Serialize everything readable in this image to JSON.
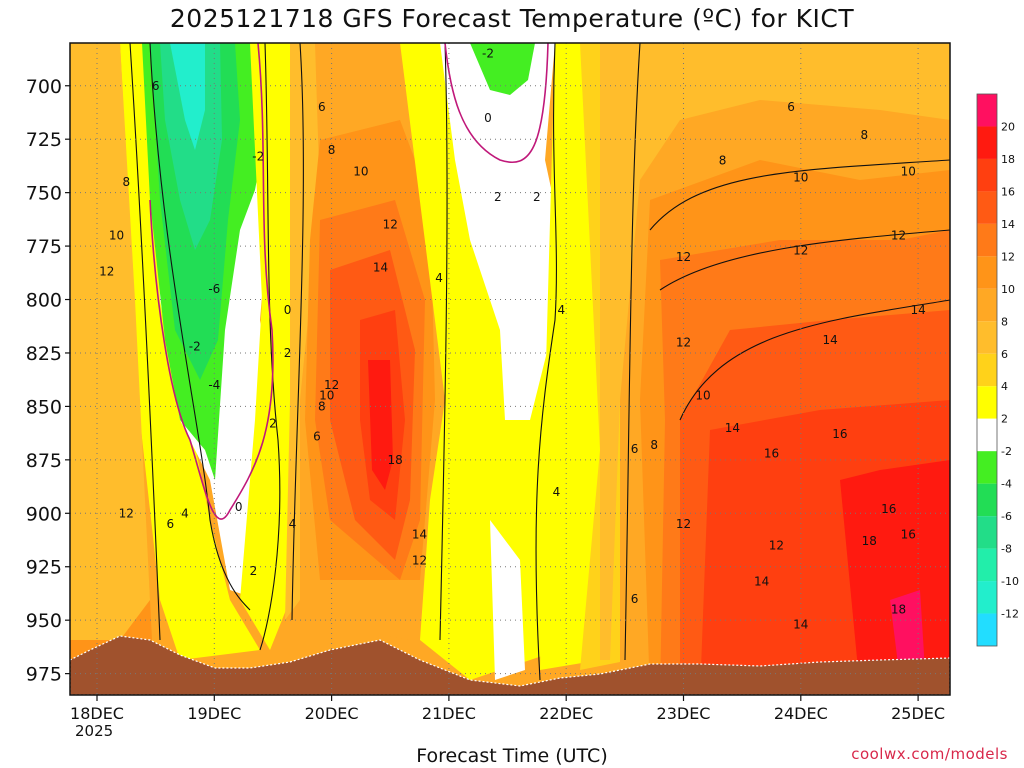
{
  "title": "2025121718 GFS Forecast Temperature (ºC) for KICT",
  "xlabel": "Forecast Time (UTC)",
  "credit": "coolwx.com/models",
  "year_label": "2025",
  "chart_data": {
    "type": "heatmap",
    "title": "2025121718 GFS Forecast Temperature (ºC) for KICT",
    "xlabel": "Forecast Time (UTC)",
    "ylabel": "",
    "x_ticks": [
      "18DEC",
      "19DEC",
      "20DEC",
      "21DEC",
      "22DEC",
      "23DEC",
      "24DEC",
      "25DEC"
    ],
    "y_ticks": [
      700,
      725,
      750,
      775,
      800,
      825,
      850,
      875,
      900,
      925,
      950,
      975
    ],
    "ylim": [
      680,
      985
    ],
    "y_inverted": true,
    "grid": true,
    "colorbar": {
      "levels": [
        20,
        18,
        16,
        14,
        12,
        10,
        8,
        6,
        4,
        2,
        -2,
        -4,
        -6,
        -8,
        -10,
        -12
      ],
      "colors": {
        "gt20": "#ff1060",
        "18_20": "#ff1a10",
        "16_18": "#ff3f10",
        "14_16": "#ff5a14",
        "12_14": "#ff7a18",
        "10_12": "#ff9418",
        "8_10": "#ffa824",
        "6_8": "#ffbd2c",
        "4_6": "#ffd21a",
        "2_4": "#ffff00",
        "m2_2": "#ffffff",
        "m4_m2": "#44ee22",
        "m6_m4": "#22dd55",
        "m8_m6": "#22dd88",
        "m10_m8": "#22eeaa",
        "m12_m10": "#22eecc",
        "lt_m12": "#22ddff"
      }
    },
    "contour_labels": [
      {
        "t": "2025-12-18 12:00",
        "p": 700,
        "v": 6
      },
      {
        "t": "2025-12-18 06:00",
        "p": 745,
        "v": 8
      },
      {
        "t": "2025-12-18 04:00",
        "p": 770,
        "v": 10
      },
      {
        "t": "2025-12-18 02:00",
        "p": 787,
        "v": 12
      },
      {
        "t": "2025-12-18 06:00",
        "p": 900,
        "v": 12
      },
      {
        "t": "2025-12-18 15:00",
        "p": 905,
        "v": 6
      },
      {
        "t": "2025-12-18 18:00",
        "p": 900,
        "v": 4
      },
      {
        "t": "2025-12-18 20:00",
        "p": 822,
        "v": -2
      },
      {
        "t": "2025-12-19 00:00",
        "p": 840,
        "v": -4
      },
      {
        "t": "2025-12-19 00:00",
        "p": 795,
        "v": -6
      },
      {
        "t": "2025-12-19 09:00",
        "p": 733,
        "v": -2
      },
      {
        "t": "2025-12-19 15:00",
        "p": 805,
        "v": 0
      },
      {
        "t": "2025-12-19 15:00",
        "p": 825,
        "v": 2
      },
      {
        "t": "2025-12-19 05:00",
        "p": 897,
        "v": 0
      },
      {
        "t": "2025-12-19 12:00",
        "p": 858,
        "v": 2
      },
      {
        "t": "2025-12-19 08:00",
        "p": 927,
        "v": 2
      },
      {
        "t": "2025-12-19 16:00",
        "p": 905,
        "v": 4
      },
      {
        "t": "2025-12-19 22:00",
        "p": 710,
        "v": 6
      },
      {
        "t": "2025-12-20 00:00",
        "p": 730,
        "v": 8
      },
      {
        "t": "2025-12-20 06:00",
        "p": 740,
        "v": 10
      },
      {
        "t": "2025-12-20 12:00",
        "p": 765,
        "v": 12
      },
      {
        "t": "2025-12-20 10:00",
        "p": 785,
        "v": 14
      },
      {
        "t": "2025-12-20 00:00",
        "p": 840,
        "v": 12
      },
      {
        "t": "2025-12-19 23:00",
        "p": 845,
        "v": 10
      },
      {
        "t": "2025-12-19 22:00",
        "p": 850,
        "v": 8
      },
      {
        "t": "2025-12-19 21:00",
        "p": 864,
        "v": 6
      },
      {
        "t": "2025-12-20 13:00",
        "p": 875,
        "v": 18
      },
      {
        "t": "2025-12-20 18:00",
        "p": 910,
        "v": 14
      },
      {
        "t": "2025-12-20 18:00",
        "p": 922,
        "v": 12
      },
      {
        "t": "2025-12-20 22:00",
        "p": 790,
        "v": 4
      },
      {
        "t": "2025-12-21 08:00",
        "p": 685,
        "v": -2
      },
      {
        "t": "2025-12-21 08:00",
        "p": 715,
        "v": 0
      },
      {
        "t": "2025-12-21 10:00",
        "p": 752,
        "v": 2
      },
      {
        "t": "2025-12-21 18:00",
        "p": 752,
        "v": 2
      },
      {
        "t": "2025-12-21 23:00",
        "p": 805,
        "v": 4
      },
      {
        "t": "2025-12-21 22:00",
        "p": 890,
        "v": 4
      },
      {
        "t": "2025-12-22 14:00",
        "p": 940,
        "v": 6
      },
      {
        "t": "2025-12-22 14:00",
        "p": 870,
        "v": 6
      },
      {
        "t": "2025-12-22 18:00",
        "p": 868,
        "v": 8
      },
      {
        "t": "2025-12-23 00:00",
        "p": 820,
        "v": 12
      },
      {
        "t": "2025-12-23 00:00",
        "p": 780,
        "v": 12
      },
      {
        "t": "2025-12-23 00:00",
        "p": 905,
        "v": 12
      },
      {
        "t": "2025-12-23 04:00",
        "p": 845,
        "v": 10
      },
      {
        "t": "2025-12-23 10:00",
        "p": 860,
        "v": 14
      },
      {
        "t": "2025-12-23 22:00",
        "p": 710,
        "v": 6
      },
      {
        "t": "2025-12-23 08:00",
        "p": 735,
        "v": 8
      },
      {
        "t": "2025-12-24 00:00",
        "p": 743,
        "v": 10
      },
      {
        "t": "2025-12-24 00:00",
        "p": 777,
        "v": 12
      },
      {
        "t": "2025-12-24 06:00",
        "p": 819,
        "v": 14
      },
      {
        "t": "2025-12-23 18:00",
        "p": 872,
        "v": 16
      },
      {
        "t": "2025-12-24 08:00",
        "p": 863,
        "v": 16
      },
      {
        "t": "2025-12-23 16:00",
        "p": 932,
        "v": 14
      },
      {
        "t": "2025-12-23 19:00",
        "p": 915,
        "v": 12
      },
      {
        "t": "2025-12-24 00:00",
        "p": 952,
        "v": 14
      },
      {
        "t": "2025-12-24 14:00",
        "p": 913,
        "v": 18
      },
      {
        "t": "2025-12-24 18:00",
        "p": 898,
        "v": 16
      },
      {
        "t": "2025-12-24 22:00",
        "p": 910,
        "v": 16
      },
      {
        "t": "2025-12-24 20:00",
        "p": 945,
        "v": 18
      },
      {
        "t": "2025-12-24 13:00",
        "p": 723,
        "v": 8
      },
      {
        "t": "2025-12-24 22:00",
        "p": 740,
        "v": 10
      },
      {
        "t": "2025-12-24 20:00",
        "p": 770,
        "v": 12
      },
      {
        "t": "2025-12-25 00:00",
        "p": 805,
        "v": 14
      }
    ]
  }
}
